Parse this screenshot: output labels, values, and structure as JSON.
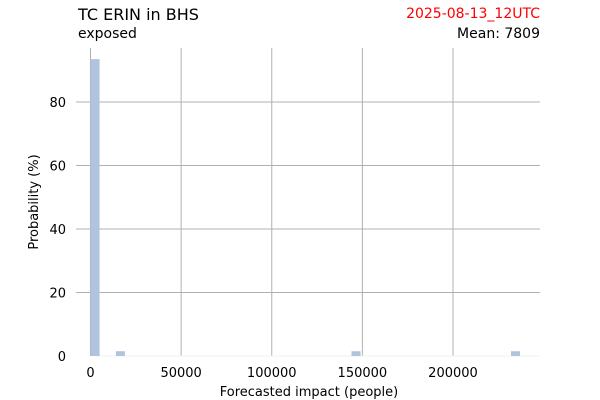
{
  "header": {
    "title": "TC ERIN in BHS",
    "subtitle": "exposed",
    "timestamp": "2025-08-13_12UTC",
    "mean_label": "Mean: 7809"
  },
  "colors": {
    "bar": "#b0c4de",
    "grid": "#b0b0b0",
    "timestamp": "#ff0000",
    "text": "#000000"
  },
  "chart_data": {
    "type": "bar",
    "title": "TC ERIN in BHS",
    "xlabel": "Forecasted impact (people)",
    "ylabel": "Probability (%)",
    "xlim": [
      -8000,
      248000
    ],
    "ylim": [
      0,
      97
    ],
    "x_ticks": [
      0,
      50000,
      100000,
      150000,
      200000
    ],
    "x_tick_labels": [
      "0",
      "50000",
      "100000",
      "150000",
      "200000"
    ],
    "y_ticks": [
      0,
      20,
      40,
      60,
      80
    ],
    "y_tick_labels": [
      "0",
      "20",
      "40",
      "60",
      "80"
    ],
    "grid": true,
    "bin_width": 5000,
    "bars": [
      {
        "x": 0,
        "value": 93.5
      },
      {
        "x": 14000,
        "value": 1.5
      },
      {
        "x": 144000,
        "value": 1.5
      },
      {
        "x": 232000,
        "value": 1.5
      }
    ]
  }
}
